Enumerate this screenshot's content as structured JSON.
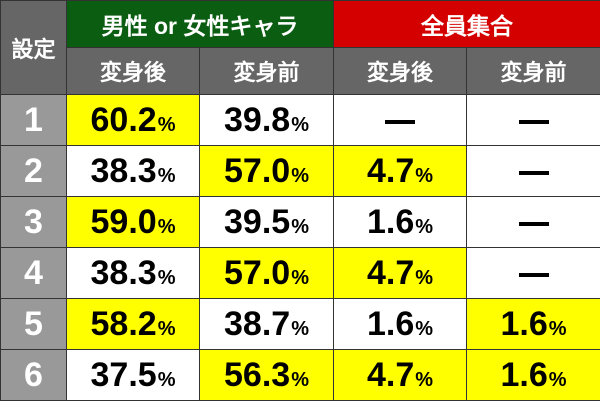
{
  "header": {
    "setting_label": "設定",
    "groups": [
      {
        "label": "男性 or 女性キャラ",
        "color": "#0b5d12"
      },
      {
        "label": "全員集合",
        "color": "#d40000"
      }
    ],
    "subcolumns": [
      "変身後",
      "変身前",
      "変身後",
      "変身前"
    ]
  },
  "highlight_color": "#ffff00",
  "rows": [
    {
      "setting": "1",
      "cells": [
        {
          "v": "60.2",
          "u": "%",
          "hl": true
        },
        {
          "v": "39.8",
          "u": "%",
          "hl": false
        },
        {
          "v": "—",
          "u": "",
          "hl": false
        },
        {
          "v": "—",
          "u": "",
          "hl": false
        }
      ]
    },
    {
      "setting": "2",
      "cells": [
        {
          "v": "38.3",
          "u": "%",
          "hl": false
        },
        {
          "v": "57.0",
          "u": "%",
          "hl": true
        },
        {
          "v": "4.7",
          "u": "%",
          "hl": true
        },
        {
          "v": "—",
          "u": "",
          "hl": false
        }
      ]
    },
    {
      "setting": "3",
      "cells": [
        {
          "v": "59.0",
          "u": "%",
          "hl": true
        },
        {
          "v": "39.5",
          "u": "%",
          "hl": false
        },
        {
          "v": "1.6",
          "u": "%",
          "hl": false
        },
        {
          "v": "—",
          "u": "",
          "hl": false
        }
      ]
    },
    {
      "setting": "4",
      "cells": [
        {
          "v": "38.3",
          "u": "%",
          "hl": false
        },
        {
          "v": "57.0",
          "u": "%",
          "hl": true
        },
        {
          "v": "4.7",
          "u": "%",
          "hl": true
        },
        {
          "v": "—",
          "u": "",
          "hl": false
        }
      ]
    },
    {
      "setting": "5",
      "cells": [
        {
          "v": "58.2",
          "u": "%",
          "hl": true
        },
        {
          "v": "38.7",
          "u": "%",
          "hl": false
        },
        {
          "v": "1.6",
          "u": "%",
          "hl": false
        },
        {
          "v": "1.6",
          "u": "%",
          "hl": true
        }
      ]
    },
    {
      "setting": "6",
      "cells": [
        {
          "v": "37.5",
          "u": "%",
          "hl": false
        },
        {
          "v": "56.3",
          "u": "%",
          "hl": true
        },
        {
          "v": "4.7",
          "u": "%",
          "hl": true
        },
        {
          "v": "1.6",
          "u": "%",
          "hl": true
        }
      ]
    }
  ]
}
